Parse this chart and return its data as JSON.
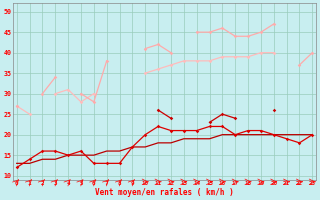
{
  "xlabel": "Vent moyen/en rafales ( km/h )",
  "background_color": "#c8eef0",
  "grid_color": "#99ccbb",
  "x": [
    0,
    1,
    2,
    3,
    4,
    5,
    6,
    7,
    8,
    9,
    10,
    11,
    12,
    13,
    14,
    15,
    16,
    17,
    18,
    19,
    20,
    21,
    22,
    23
  ],
  "series": {
    "pink_high": [
      27,
      null,
      30,
      34,
      null,
      30,
      28,
      38,
      null,
      null,
      41,
      42,
      40,
      null,
      45,
      45,
      46,
      44,
      44,
      45,
      47,
      null,
      37,
      40
    ],
    "pink_low": [
      27,
      25,
      null,
      30,
      31,
      28,
      30,
      null,
      null,
      null,
      35,
      36,
      37,
      38,
      38,
      38,
      39,
      39,
      39,
      40,
      40,
      null,
      null,
      null
    ],
    "red_spike": [
      null,
      null,
      null,
      null,
      null,
      null,
      null,
      null,
      null,
      null,
      null,
      26,
      24,
      null,
      null,
      23,
      25,
      24,
      null,
      null,
      26,
      null,
      null,
      null
    ],
    "red_main": [
      12,
      14,
      16,
      16,
      15,
      16,
      13,
      13,
      13,
      17,
      20,
      22,
      21,
      21,
      21,
      22,
      22,
      20,
      21,
      21,
      20,
      19,
      18,
      20
    ],
    "red_trend": [
      13,
      13,
      14,
      14,
      15,
      15,
      15,
      16,
      16,
      17,
      17,
      18,
      18,
      19,
      19,
      19,
      20,
      20,
      20,
      20,
      20,
      20,
      20,
      20
    ]
  },
  "ylim": [
    9,
    52
  ],
  "yticks": [
    10,
    15,
    20,
    25,
    30,
    35,
    40,
    45,
    50
  ],
  "xlim": [
    -0.3,
    23.3
  ],
  "pink_high_color": "#ffaaaa",
  "pink_low_color": "#ffbbbb",
  "red_spike_color": "#cc0000",
  "red_main_color": "#dd0000",
  "red_trend_color": "#bb0000",
  "arrow_angles": [
    225,
    225,
    225,
    225,
    225,
    225,
    225,
    225,
    225,
    225,
    270,
    270,
    270,
    270,
    270,
    270,
    270,
    270,
    270,
    270,
    270,
    270,
    270,
    270
  ]
}
